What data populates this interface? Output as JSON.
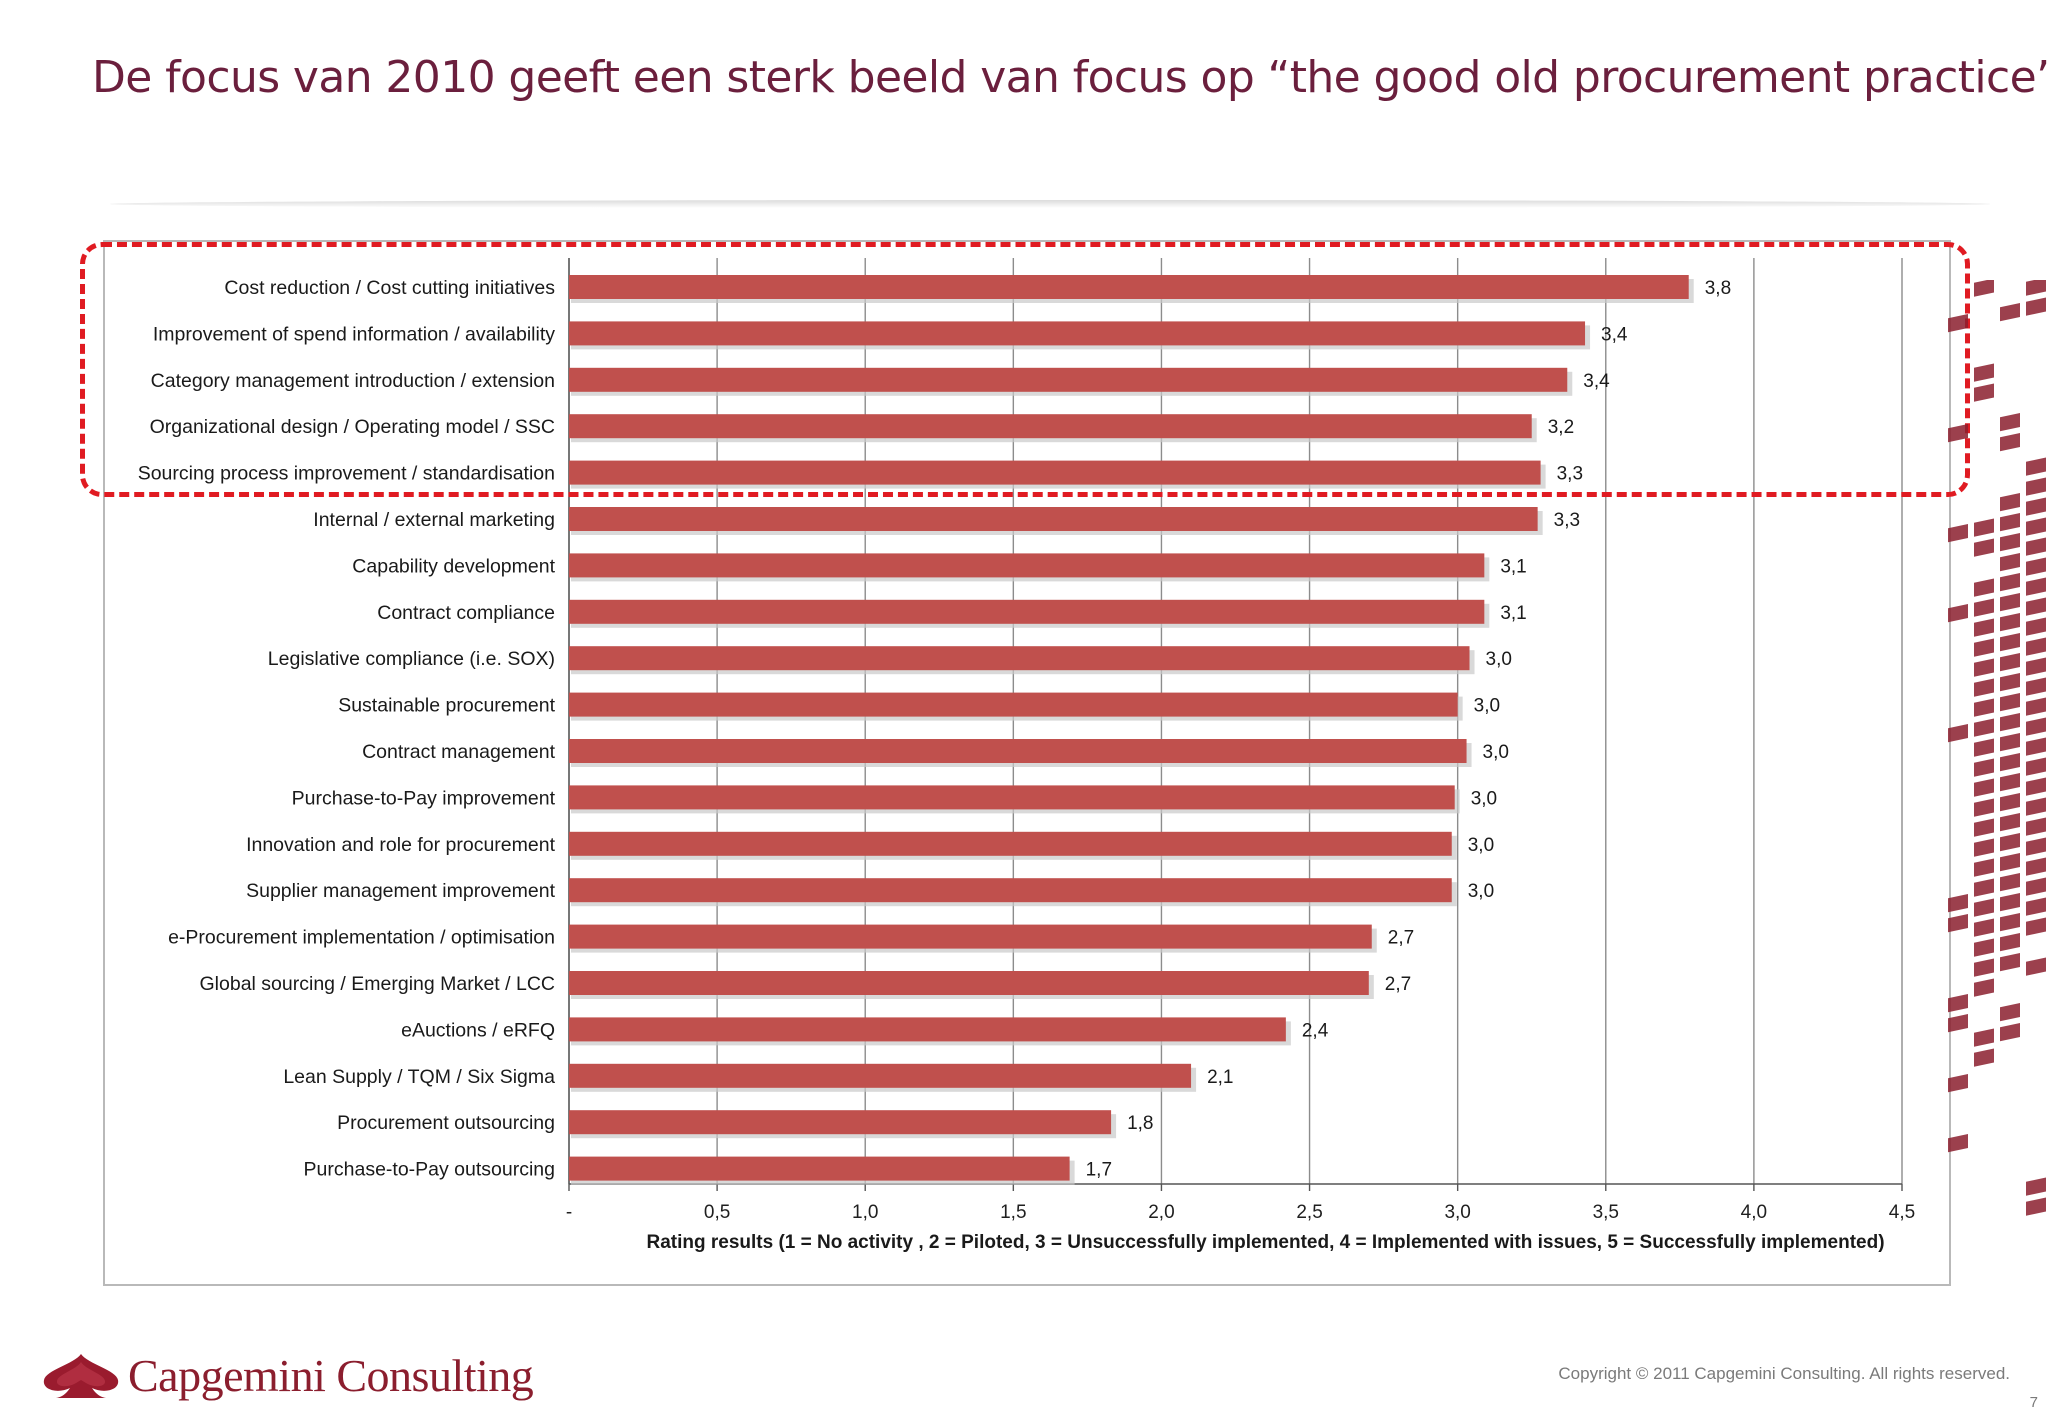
{
  "slide": {
    "title": "De focus van 2010 geeft een sterk beeld van focus op “the good old procurement practice”",
    "logo_text": "Capgemini Consulting",
    "copyright": "Copyright © 2011 Capgemini Consulting. All rights reserved.",
    "page_number": "7",
    "colors": {
      "title": "#6b1f3d",
      "bar": "#c0504d",
      "highlight": "#e01b22",
      "brand": "#8b1e2e"
    },
    "icons": [
      "spade-logo-icon"
    ]
  },
  "chart_data": {
    "type": "bar",
    "orientation": "horizontal",
    "xlabel": "Rating results (1 = No activity , 2 = Piloted,  3 = Unsuccessfully implemented, 4 = Implemented with issues, 5 = Successfully implemented)",
    "xlim": [
      0,
      4.5
    ],
    "xticks": [
      "-",
      "0,5",
      "1,0",
      "1,5",
      "2,0",
      "2,5",
      "3,0",
      "3,5",
      "4,0",
      "4,5"
    ],
    "grid": "vertical",
    "highlighted_categories": [
      0,
      1,
      2,
      3,
      4
    ],
    "categories": [
      "Cost reduction / Cost cutting initiatives",
      "Improvement of spend information / availability",
      "Category management introduction / extension",
      "Organizational design / Operating model / SSC",
      "Sourcing process improvement / standardisation",
      "Internal / external marketing",
      "Capability development",
      "Contract compliance",
      "Legislative compliance (i.e. SOX)",
      "Sustainable procurement",
      "Contract management",
      "Purchase-to-Pay improvement",
      "Innovation and role for procurement",
      "Supplier management improvement",
      "e-Procurement implementation / optimisation",
      "Global sourcing / Emerging Market / LCC",
      "eAuctions / eRFQ",
      "Lean Supply / TQM / Six Sigma",
      "Procurement outsourcing",
      "Purchase-to-Pay outsourcing"
    ],
    "values": [
      3.78,
      3.43,
      3.37,
      3.25,
      3.28,
      3.27,
      3.09,
      3.09,
      3.04,
      3.0,
      3.03,
      2.99,
      2.98,
      2.98,
      2.71,
      2.7,
      2.42,
      2.1,
      1.83,
      1.69
    ],
    "value_labels": [
      "3,8",
      "3,4",
      "3,4",
      "3,2",
      "3,3",
      "3,3",
      "3,1",
      "3,1",
      "3,0",
      "3,0",
      "3,0",
      "3,0",
      "3,0",
      "3,0",
      "2,7",
      "2,7",
      "2,4",
      "2,1",
      "1,8",
      "1,7"
    ]
  }
}
